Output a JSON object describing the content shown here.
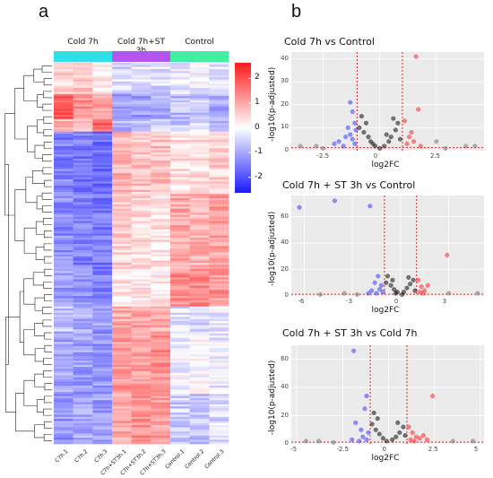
{
  "panel_a": {
    "letter": "a",
    "groups": [
      {
        "label": "Cold 7h",
        "color": "#2fe0e8"
      },
      {
        "label": "Cold 7h+ST 3h",
        "color": "#b455f0"
      },
      {
        "label": "Control",
        "color": "#40f0a0"
      }
    ],
    "samples": [
      "C7h.1",
      "C7h.2",
      "C7h.3",
      "C7h+ST3h.1",
      "C7h+ST3h.2",
      "C7h+ST3h.3",
      "Control.1",
      "Control.2",
      "Control.3"
    ],
    "colorbar_ticks": [
      "2",
      "1",
      "0",
      "-1",
      "-2"
    ]
  },
  "panel_b": {
    "letter": "b",
    "xlabel": "log2FC",
    "ylabel": "-log10(p-adjusted)"
  },
  "chart_data": [
    {
      "type": "heatmap",
      "title": "",
      "columns": [
        "C7h.1",
        "C7h.2",
        "C7h.3",
        "C7h+ST3h.1",
        "C7h+ST3h.2",
        "C7h+ST3h.3",
        "Control.1",
        "Control.2",
        "Control.3"
      ],
      "column_groups": [
        "Cold 7h",
        "Cold 7h",
        "Cold 7h",
        "Cold 7h+ST 3h",
        "Cold 7h+ST 3h",
        "Cold 7h+ST 3h",
        "Control",
        "Control",
        "Control"
      ],
      "color_scale": {
        "low": "#1a1aff",
        "mid": "#ffffff",
        "high": "#ff1a1a",
        "range": [
          -2.4,
          2.4
        ]
      },
      "blocks": [
        {
          "rows": 5,
          "values": [
            0.5,
            0.6,
            0.2,
            -0.4,
            -0.3,
            -0.4,
            -0.2,
            -0.1,
            -0.3
          ]
        },
        {
          "rows": 4,
          "values": [
            1.8,
            1.2,
            0.9,
            -0.9,
            -1.0,
            -0.8,
            -0.7,
            -0.6,
            -0.9
          ]
        },
        {
          "rows": 2,
          "values": [
            0.8,
            0.5,
            1.6,
            -0.8,
            -0.6,
            -0.5,
            -0.6,
            -0.4,
            -0.7
          ]
        },
        {
          "rows": 10,
          "values": [
            -1.3,
            -1.4,
            -1.5,
            0.8,
            0.6,
            0.7,
            0.3,
            0.4,
            0.5
          ]
        },
        {
          "rows": 12,
          "values": [
            -1.2,
            -1.3,
            -1.4,
            0.5,
            0.4,
            0.3,
            0.9,
            0.8,
            1.0
          ]
        },
        {
          "rows": 6,
          "values": [
            -1.0,
            -1.2,
            -1.3,
            0.3,
            0.2,
            0.2,
            1.2,
            1.3,
            1.1
          ]
        },
        {
          "rows": 4,
          "values": [
            -0.6,
            -0.8,
            -0.9,
            0.9,
            1.0,
            0.8,
            -0.3,
            -0.4,
            -0.2
          ]
        },
        {
          "rows": 10,
          "values": [
            -0.9,
            -1.0,
            -1.1,
            1.1,
            1.0,
            1.2,
            -0.1,
            0.0,
            -0.2
          ]
        },
        {
          "rows": 8,
          "values": [
            -1.1,
            -0.9,
            -1.0,
            0.9,
            1.2,
            1.0,
            -0.5,
            -0.6,
            -0.4
          ]
        }
      ]
    },
    {
      "type": "scatter",
      "title": "Cold 7h vs Control",
      "xlabel": "log2FC",
      "ylabel": "-log10(p-adjusted)",
      "xlim": [
        -3.9,
        4.6
      ],
      "ylim": [
        0,
        43
      ],
      "x_ticks": [
        -2.5,
        0.0,
        2.5
      ],
      "y_ticks": [
        0,
        10,
        20,
        30,
        40
      ],
      "thresholds": {
        "log2fc": [
          -1,
          1
        ],
        "padj": 1.3
      },
      "series": [
        {
          "values": [
            [
              -1.3,
              21
            ],
            [
              -1.2,
              17
            ],
            [
              -1.1,
              12
            ],
            [
              -1.05,
              9
            ],
            [
              -1.3,
              7
            ],
            [
              -1.5,
              6
            ],
            [
              -1.8,
              4
            ],
            [
              -2.0,
              3
            ],
            [
              -1.2,
              5
            ],
            [
              -1.1,
              3
            ],
            [
              -1.6,
              2
            ],
            [
              -1.4,
              10
            ]
          ]
        },
        {
          "values": [
            [
              -0.9,
              10
            ],
            [
              -0.7,
              8
            ],
            [
              -0.5,
              6
            ],
            [
              -0.3,
              3
            ],
            [
              -0.2,
              2
            ],
            [
              0.2,
              2
            ],
            [
              0.4,
              4
            ],
            [
              0.5,
              6
            ],
            [
              0.7,
              9
            ],
            [
              0.8,
              12
            ],
            [
              0.6,
              14
            ],
            [
              0.3,
              7
            ],
            [
              -0.6,
              12
            ],
            [
              -0.8,
              15
            ],
            [
              0.9,
              5
            ],
            [
              0.0,
              1
            ],
            [
              -0.4,
              4
            ]
          ]
        },
        {
          "values": [
            [
              1.1,
              13
            ],
            [
              1.3,
              6
            ],
            [
              1.5,
              4
            ],
            [
              1.2,
              3
            ],
            [
              1.7,
              18
            ],
            [
              1.6,
              41
            ],
            [
              1.4,
              8
            ],
            [
              1.8,
              2
            ]
          ]
        },
        {
          "values": [
            [
              -3.5,
              2
            ],
            [
              -2.5,
              1
            ],
            [
              -2.8,
              2
            ],
            [
              3.8,
              2
            ],
            [
              4.2,
              2
            ],
            [
              2.9,
              1
            ],
            [
              2.5,
              4
            ]
          ]
        }
      ]
    },
    {
      "type": "scatter",
      "title": "Cold 7h + ST 3h vs Control",
      "xlabel": "log2FC",
      "ylabel": "-log10(p-adjusted)",
      "xlim": [
        -6.8,
        5.2
      ],
      "ylim": [
        0,
        76
      ],
      "x_ticks": [
        -6,
        -3,
        0,
        3
      ],
      "y_ticks": [
        0,
        20,
        40,
        60
      ],
      "thresholds": {
        "log2fc": [
          -1,
          1
        ],
        "padj": 1.3
      },
      "series": [
        {
          "values": [
            [
              -6.3,
              67
            ],
            [
              -4.1,
              72
            ],
            [
              -1.9,
              68
            ],
            [
              -1.6,
              10
            ],
            [
              -1.4,
              15
            ],
            [
              -1.3,
              5
            ],
            [
              -1.2,
              8
            ],
            [
              -1.1,
              3
            ],
            [
              -1.5,
              2
            ],
            [
              -1.8,
              4
            ],
            [
              -2.0,
              2
            ]
          ]
        },
        {
          "values": [
            [
              -0.9,
              10
            ],
            [
              -0.6,
              8
            ],
            [
              -0.4,
              5
            ],
            [
              -0.2,
              3
            ],
            [
              0.2,
              3
            ],
            [
              0.4,
              6
            ],
            [
              0.6,
              9
            ],
            [
              0.8,
              12
            ],
            [
              -0.8,
              15
            ],
            [
              0.5,
              14
            ],
            [
              -0.3,
              2
            ],
            [
              0.1,
              1
            ],
            [
              0.9,
              4
            ],
            [
              -0.5,
              12
            ]
          ]
        },
        {
          "values": [
            [
              1.1,
              12
            ],
            [
              1.3,
              7
            ],
            [
              1.5,
              4
            ],
            [
              1.2,
              3
            ],
            [
              1.7,
              8
            ],
            [
              1.4,
              2
            ],
            [
              2.9,
              31
            ]
          ]
        },
        {
          "values": [
            [
              -3.5,
              2
            ],
            [
              -2.7,
              1
            ],
            [
              3.0,
              2
            ],
            [
              4.8,
              2
            ],
            [
              -5.0,
              1
            ]
          ]
        }
      ]
    },
    {
      "type": "scatter",
      "title": "Cold 7h + ST 3h vs Cold 7h",
      "xlabel": "log2FC",
      "ylabel": "-log10(p-adjusted)",
      "xlim": [
        -5.3,
        5.2
      ],
      "ylim": [
        0,
        70
      ],
      "x_ticks": [
        -5.0,
        -2.5,
        0.0,
        2.5,
        5.0
      ],
      "y_ticks": [
        0,
        20,
        40,
        60
      ],
      "thresholds": {
        "log2fc": [
          -1,
          1
        ],
        "padj": 1.3
      },
      "series": [
        {
          "values": [
            [
              -1.9,
              66
            ],
            [
              -1.2,
              34
            ],
            [
              -1.3,
              25
            ],
            [
              -1.5,
              10
            ],
            [
              -1.1,
              8
            ],
            [
              -1.4,
              5
            ],
            [
              -1.2,
              3
            ],
            [
              -1.6,
              2
            ],
            [
              -2.0,
              3
            ],
            [
              -1.8,
              15
            ]
          ]
        },
        {
          "values": [
            [
              -0.9,
              14
            ],
            [
              -0.7,
              10
            ],
            [
              -0.5,
              7
            ],
            [
              -0.3,
              4
            ],
            [
              -0.1,
              2
            ],
            [
              0.2,
              3
            ],
            [
              0.4,
              5
            ],
            [
              0.6,
              8
            ],
            [
              0.8,
              12
            ],
            [
              -0.6,
              18
            ],
            [
              0.5,
              15
            ],
            [
              -0.8,
              22
            ],
            [
              0.9,
              6
            ]
          ]
        },
        {
          "values": [
            [
              1.1,
              12
            ],
            [
              1.3,
              8
            ],
            [
              1.5,
              5
            ],
            [
              1.2,
              3
            ],
            [
              1.7,
              4
            ],
            [
              1.4,
              2
            ],
            [
              2.4,
              34
            ],
            [
              1.9,
              6
            ],
            [
              2.1,
              3
            ]
          ]
        },
        {
          "values": [
            [
              -4.5,
              2
            ],
            [
              -3.0,
              1
            ],
            [
              3.5,
              2
            ],
            [
              4.6,
              2
            ],
            [
              -3.8,
              2
            ]
          ]
        }
      ]
    }
  ]
}
